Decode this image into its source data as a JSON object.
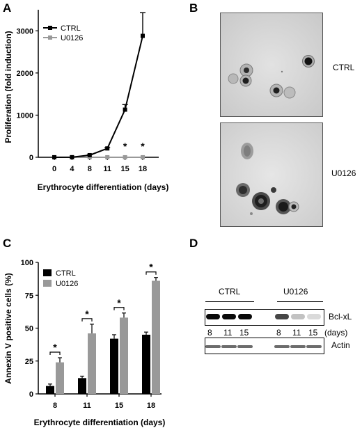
{
  "panels": {
    "A": "A",
    "B": "B",
    "C": "C",
    "D": "D"
  },
  "chart_data": [
    {
      "panel": "A",
      "type": "line",
      "ylabel": "Proliferation (fold induction)",
      "xlabel": "Erythrocyte differentiation (days)",
      "x": [
        0,
        4,
        8,
        11,
        15,
        18
      ],
      "x_ticks": [
        "0",
        "4",
        "8",
        "11",
        "15",
        "18"
      ],
      "ylim": [
        0,
        3500
      ],
      "y_ticks": [
        0,
        1000,
        2000,
        3000
      ],
      "legend_position": "top-left",
      "series": [
        {
          "name": "CTRL",
          "color": "#000000",
          "values": [
            1,
            2,
            50,
            210,
            1130,
            2880
          ],
          "errors": [
            0,
            0,
            10,
            20,
            120,
            550
          ]
        },
        {
          "name": "U0126",
          "color": "#999999",
          "values": [
            1,
            1,
            1,
            1,
            1,
            1
          ],
          "errors": [
            0,
            0,
            0,
            0,
            0,
            0
          ]
        }
      ],
      "significance": [
        {
          "x": 15,
          "mark": "*"
        },
        {
          "x": 18,
          "mark": "*"
        }
      ]
    },
    {
      "panel": "C",
      "type": "bar",
      "ylabel": "Annexin V positive cells (%)",
      "xlabel": "Erythrocyte differentiation (days)",
      "categories": [
        "8",
        "11",
        "15",
        "18"
      ],
      "ylim": [
        0,
        100
      ],
      "y_ticks": [
        0,
        25,
        50,
        75,
        100
      ],
      "legend_position": "top-left",
      "series": [
        {
          "name": "CTRL",
          "color": "#000000",
          "values": [
            6,
            12,
            42,
            45
          ],
          "errors": [
            1.5,
            1.5,
            3,
            2
          ]
        },
        {
          "name": "U0126",
          "color": "#999999",
          "values": [
            24,
            46,
            58,
            86
          ],
          "errors": [
            3.5,
            7,
            3.5,
            2.5
          ]
        }
      ],
      "significance": [
        "*",
        "*",
        "*",
        "*"
      ]
    }
  ],
  "micrographs": {
    "top_label": "CTRL",
    "bottom_label": "U0126"
  },
  "blot": {
    "group_labels": [
      "CTRL",
      "U0126"
    ],
    "lane_days": [
      "8",
      "11",
      "15",
      "8",
      "11",
      "15"
    ],
    "days_unit": "(days)",
    "bands": [
      {
        "label": "Bcl-xL",
        "intensities": [
          1.0,
          1.0,
          1.0,
          0.75,
          0.25,
          0.15
        ]
      },
      {
        "label": "Actin",
        "intensities": [
          0.6,
          0.6,
          0.6,
          0.6,
          0.6,
          0.6
        ]
      }
    ]
  }
}
